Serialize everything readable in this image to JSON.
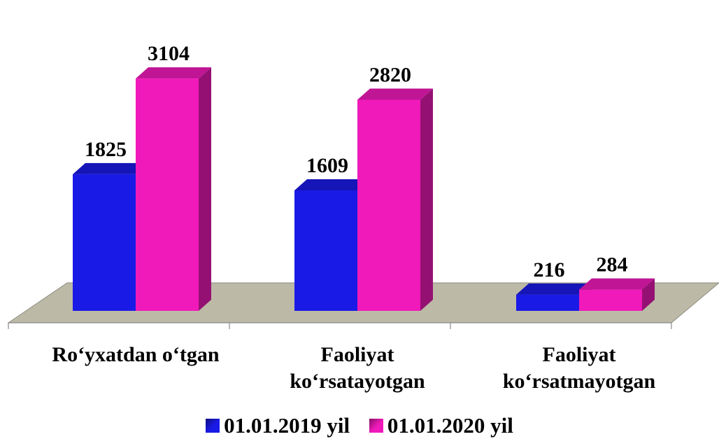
{
  "chart_data": {
    "type": "bar",
    "categories": [
      [
        "Ro‘yxatdan o‘tgan"
      ],
      [
        "Faoliyat",
        "ko‘rsatayotgan"
      ],
      [
        "Faoliyat",
        "ko‘rsatmayotgan"
      ]
    ],
    "series": [
      {
        "name": "01.01.2019 yil",
        "values": [
          1825,
          1609,
          216
        ],
        "color": "#1a1ae6"
      },
      {
        "name": "01.01.2020 yil",
        "values": [
          3104,
          2820,
          284
        ],
        "color": "#f01aba"
      }
    ],
    "value_labels": [
      [
        "1825",
        "1609",
        "216"
      ],
      [
        "3104",
        "2820",
        "284"
      ]
    ],
    "title": "",
    "xlabel": "",
    "ylabel": "",
    "floor_color": "#bcbaa6",
    "style": "3d-bar",
    "legend_position": "bottom"
  }
}
